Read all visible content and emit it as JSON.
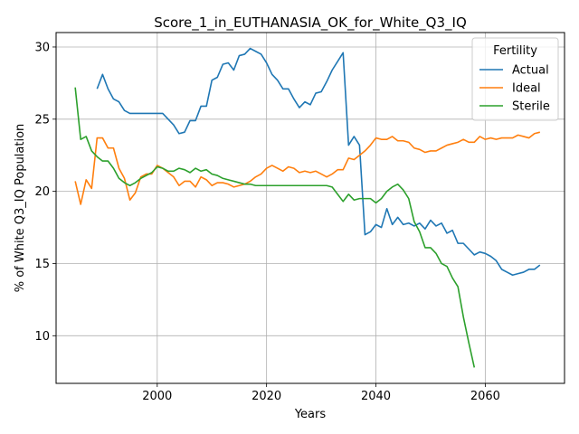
{
  "chart_data": {
    "type": "line",
    "title": "Score_1_in_EUTHANASIA_OK_for_White_Q3_IQ",
    "xlabel": "Years",
    "ylabel": "% of White Q3_IQ Population",
    "xlim": [
      1981.5,
      2074.5
    ],
    "ylim": [
      6.7,
      31.0
    ],
    "xticks": [
      2000,
      2020,
      2040,
      2060
    ],
    "yticks": [
      10,
      15,
      20,
      25,
      30
    ],
    "grid": true,
    "legend": {
      "title": "Fertility",
      "placement": "top-right"
    },
    "series": [
      {
        "name": "Actual",
        "color": "#1f77b4",
        "x": [
          1989,
          1990,
          1991,
          1992,
          1993,
          1994,
          1995,
          1996,
          1997,
          1998,
          1999,
          2000,
          2001,
          2002,
          2003,
          2004,
          2005,
          2006,
          2007,
          2008,
          2009,
          2010,
          2011,
          2012,
          2013,
          2014,
          2015,
          2016,
          2017,
          2018,
          2019,
          2020,
          2021,
          2022,
          2023,
          2024,
          2025,
          2026,
          2027,
          2028,
          2029,
          2030,
          2031,
          2032,
          2033,
          2034,
          2035,
          2036,
          2037,
          2038,
          2039,
          2040,
          2041,
          2042,
          2043,
          2044,
          2045,
          2046,
          2047,
          2048,
          2049,
          2050,
          2051,
          2052,
          2053,
          2054,
          2055,
          2056,
          2057,
          2058,
          2059,
          2060,
          2061,
          2062,
          2063,
          2064,
          2065,
          2066,
          2067,
          2068,
          2069,
          2070
        ],
        "values": [
          27.1,
          28.1,
          27.1,
          26.4,
          26.2,
          25.6,
          25.4,
          25.4,
          25.4,
          25.4,
          25.4,
          25.4,
          25.4,
          25.0,
          24.6,
          24.0,
          24.1,
          24.9,
          24.9,
          25.9,
          25.9,
          27.7,
          27.9,
          28.8,
          28.9,
          28.4,
          29.4,
          29.5,
          29.9,
          29.7,
          29.5,
          28.9,
          28.1,
          27.7,
          27.1,
          27.1,
          26.4,
          25.8,
          26.2,
          26.0,
          26.8,
          26.9,
          27.6,
          28.4,
          29.0,
          29.6,
          23.2,
          23.8,
          23.2,
          17.0,
          17.2,
          17.7,
          17.5,
          18.8,
          17.7,
          18.2,
          17.7,
          17.8,
          17.6,
          17.8,
          17.4,
          18.0,
          17.6,
          17.8,
          17.1,
          17.3,
          16.4,
          16.4,
          16.0,
          15.6,
          15.8,
          15.7,
          15.5,
          15.2,
          14.6,
          14.4,
          14.2,
          14.3,
          14.4,
          14.6,
          14.6,
          14.9
        ]
      },
      {
        "name": "Ideal",
        "color": "#ff7f0e",
        "x": [
          1985,
          1986,
          1987,
          1988,
          1989,
          1990,
          1991,
          1992,
          1993,
          1994,
          1995,
          1996,
          1997,
          1998,
          1999,
          2000,
          2001,
          2002,
          2003,
          2004,
          2005,
          2006,
          2007,
          2008,
          2009,
          2010,
          2011,
          2012,
          2013,
          2014,
          2015,
          2016,
          2017,
          2018,
          2019,
          2020,
          2021,
          2022,
          2023,
          2024,
          2025,
          2026,
          2027,
          2028,
          2029,
          2030,
          2031,
          2032,
          2033,
          2034,
          2035,
          2036,
          2037,
          2038,
          2039,
          2040,
          2041,
          2042,
          2043,
          2044,
          2045,
          2046,
          2047,
          2048,
          2049,
          2050,
          2051,
          2052,
          2053,
          2054,
          2055,
          2056,
          2057,
          2058,
          2059,
          2060,
          2061,
          2062,
          2063,
          2064,
          2065,
          2066,
          2067,
          2068,
          2069,
          2070
        ],
        "values": [
          20.7,
          19.1,
          20.8,
          20.2,
          23.7,
          23.7,
          23.0,
          23.0,
          21.6,
          20.9,
          19.4,
          19.9,
          21.0,
          21.2,
          21.2,
          21.8,
          21.6,
          21.3,
          21.0,
          20.4,
          20.7,
          20.7,
          20.3,
          21.0,
          20.8,
          20.4,
          20.6,
          20.6,
          20.5,
          20.3,
          20.4,
          20.5,
          20.7,
          21.0,
          21.2,
          21.6,
          21.8,
          21.6,
          21.4,
          21.7,
          21.6,
          21.3,
          21.4,
          21.3,
          21.4,
          21.2,
          21.0,
          21.2,
          21.5,
          21.5,
          22.3,
          22.2,
          22.5,
          22.8,
          23.2,
          23.7,
          23.6,
          23.6,
          23.8,
          23.5,
          23.5,
          23.4,
          23.0,
          22.9,
          22.7,
          22.8,
          22.8,
          23.0,
          23.2,
          23.3,
          23.4,
          23.6,
          23.4,
          23.4,
          23.8,
          23.6,
          23.7,
          23.6,
          23.7,
          23.7,
          23.7,
          23.9,
          23.8,
          23.7,
          24.0,
          24.1
        ]
      },
      {
        "name": "Sterile",
        "color": "#2ca02c",
        "x": [
          1985,
          1986,
          1987,
          1988,
          1989,
          1990,
          1991,
          1992,
          1993,
          1994,
          1995,
          1996,
          1997,
          1998,
          1999,
          2000,
          2001,
          2002,
          2003,
          2004,
          2005,
          2006,
          2007,
          2008,
          2009,
          2010,
          2011,
          2012,
          2013,
          2014,
          2015,
          2016,
          2017,
          2018,
          2019,
          2020,
          2021,
          2022,
          2023,
          2024,
          2025,
          2026,
          2027,
          2028,
          2029,
          2030,
          2031,
          2032,
          2033,
          2034,
          2035,
          2036,
          2037,
          2038,
          2039,
          2040,
          2041,
          2042,
          2043,
          2044,
          2045,
          2046,
          2047,
          2048,
          2049,
          2050,
          2051,
          2052,
          2053,
          2054,
          2055,
          2056,
          2057,
          2058
        ],
        "values": [
          27.2,
          23.6,
          23.8,
          22.8,
          22.4,
          22.1,
          22.1,
          21.6,
          20.9,
          20.6,
          20.4,
          20.6,
          20.9,
          21.1,
          21.3,
          21.7,
          21.6,
          21.4,
          21.4,
          21.6,
          21.5,
          21.3,
          21.6,
          21.4,
          21.5,
          21.2,
          21.1,
          20.9,
          20.8,
          20.7,
          20.6,
          20.5,
          20.5,
          20.4,
          20.4,
          20.4,
          20.4,
          20.4,
          20.4,
          20.4,
          20.4,
          20.4,
          20.4,
          20.4,
          20.4,
          20.4,
          20.4,
          20.3,
          19.8,
          19.3,
          19.8,
          19.4,
          19.5,
          19.5,
          19.5,
          19.2,
          19.5,
          20.0,
          20.3,
          20.5,
          20.1,
          19.5,
          17.9,
          17.2,
          16.1,
          16.1,
          15.7,
          15.0,
          14.8,
          14.0,
          13.4,
          11.3,
          9.5,
          7.8
        ]
      }
    ]
  }
}
